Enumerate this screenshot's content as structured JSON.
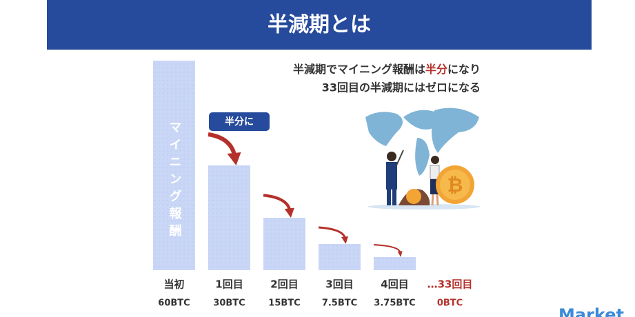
{
  "header": {
    "title": "半減期とは"
  },
  "chart_data": {
    "type": "bar",
    "categories": [
      "当初",
      "1回目",
      "2回目",
      "3回目",
      "4回目",
      "…33回目"
    ],
    "values": [
      60,
      30,
      15,
      7.5,
      3.75,
      0
    ],
    "value_labels": [
      "60BTC",
      "30BTC",
      "15BTC",
      "7.5BTC",
      "3.75BTC",
      "0BTC"
    ],
    "color": "#c9d6f6",
    "bar_label": "マイニング報酬",
    "badge": "半分に"
  },
  "note": {
    "line1": [
      "半減期でマイニング報酬は",
      "半分",
      "になり"
    ],
    "line2": "33回目の半減期にはゼロになる"
  },
  "watermark": "Market"
}
